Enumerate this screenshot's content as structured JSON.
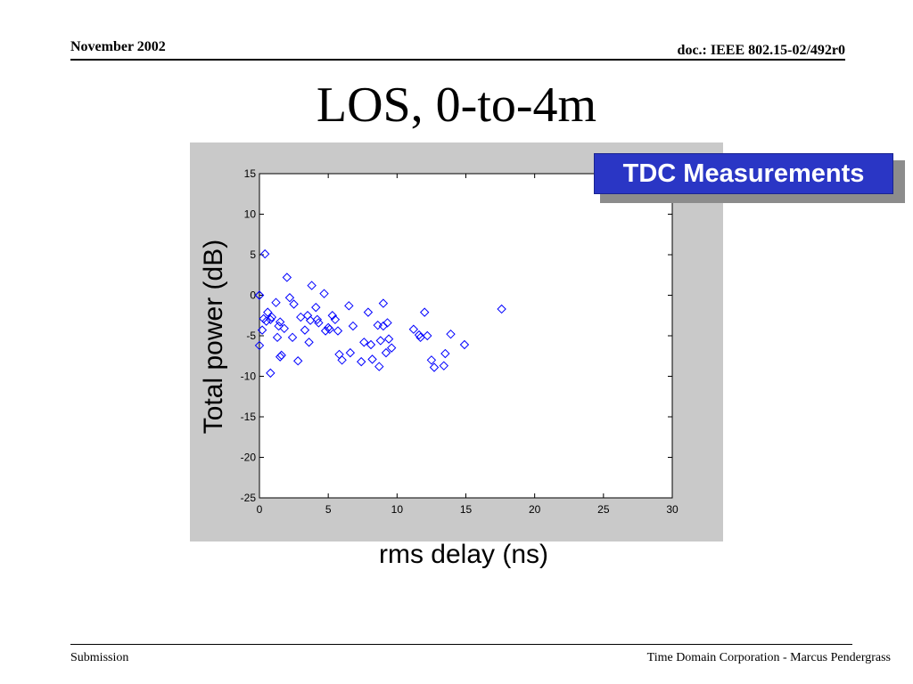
{
  "header": {
    "date": "November 2002",
    "doc_id": "doc.: IEEE 802.15-02/492r0"
  },
  "slide": {
    "title": "LOS, 0-to-4m",
    "badge": "TDC Measurements"
  },
  "footer": {
    "left": "Submission",
    "right": "Time Domain Corporation - Marcus Pendergrass"
  },
  "colors": {
    "marker": "#0000ff",
    "plot_background": "#c9c9c9",
    "badge_background": "#2a36c5"
  },
  "chart_data": {
    "type": "scatter",
    "title": "",
    "xlabel": "rms delay (ns)",
    "ylabel": "Total power (dB)",
    "xlim": [
      0,
      30
    ],
    "ylim": [
      -25,
      15
    ],
    "xticks": [
      0,
      5,
      10,
      15,
      20,
      25,
      30
    ],
    "yticks": [
      15,
      10,
      5,
      0,
      -5,
      -10,
      -15,
      -20,
      -25
    ],
    "grid": false,
    "marker": "diamond",
    "x": [
      0.0,
      0.0,
      0.0,
      0.2,
      0.4,
      0.3,
      0.5,
      0.6,
      0.8,
      0.8,
      0.9,
      1.2,
      1.3,
      1.4,
      1.5,
      1.5,
      1.6,
      1.8,
      2.0,
      2.2,
      2.4,
      2.5,
      2.8,
      3.0,
      3.3,
      3.5,
      3.6,
      3.7,
      3.8,
      4.1,
      4.2,
      4.3,
      4.7,
      4.8,
      5.0,
      5.1,
      5.3,
      5.5,
      5.7,
      5.8,
      6.0,
      6.5,
      6.6,
      6.8,
      7.4,
      7.6,
      7.9,
      8.1,
      8.2,
      8.6,
      8.7,
      8.8,
      9.0,
      9.0,
      9.2,
      9.3,
      9.4,
      9.6,
      11.2,
      11.6,
      11.7,
      12.0,
      12.2,
      12.5,
      12.7,
      13.4,
      13.5,
      13.9,
      14.9,
      17.6
    ],
    "y": [
      0.0,
      0.0,
      -6.2,
      -4.3,
      5.1,
      -2.9,
      -3.2,
      -2.1,
      -3.0,
      -9.6,
      -2.7,
      -0.9,
      -5.2,
      -3.8,
      -3.3,
      -7.6,
      -7.4,
      -4.1,
      2.2,
      -0.3,
      -5.2,
      -1.1,
      -8.1,
      -2.7,
      -4.3,
      -2.5,
      -5.8,
      -3.1,
      1.2,
      -1.5,
      -3.0,
      -3.4,
      0.2,
      -4.4,
      -4.0,
      -4.2,
      -2.5,
      -3.0,
      -4.4,
      -7.3,
      -8.0,
      -1.3,
      -7.1,
      -3.8,
      -8.2,
      -5.8,
      -2.1,
      -6.1,
      -7.9,
      -3.7,
      -8.8,
      -5.6,
      -1.0,
      -3.8,
      -7.1,
      -3.4,
      -5.4,
      -6.5,
      -4.2,
      -4.9,
      -5.2,
      -2.1,
      -5.0,
      -8.0,
      -8.9,
      -8.7,
      -7.2,
      -4.8,
      -6.1,
      -1.7
    ]
  }
}
